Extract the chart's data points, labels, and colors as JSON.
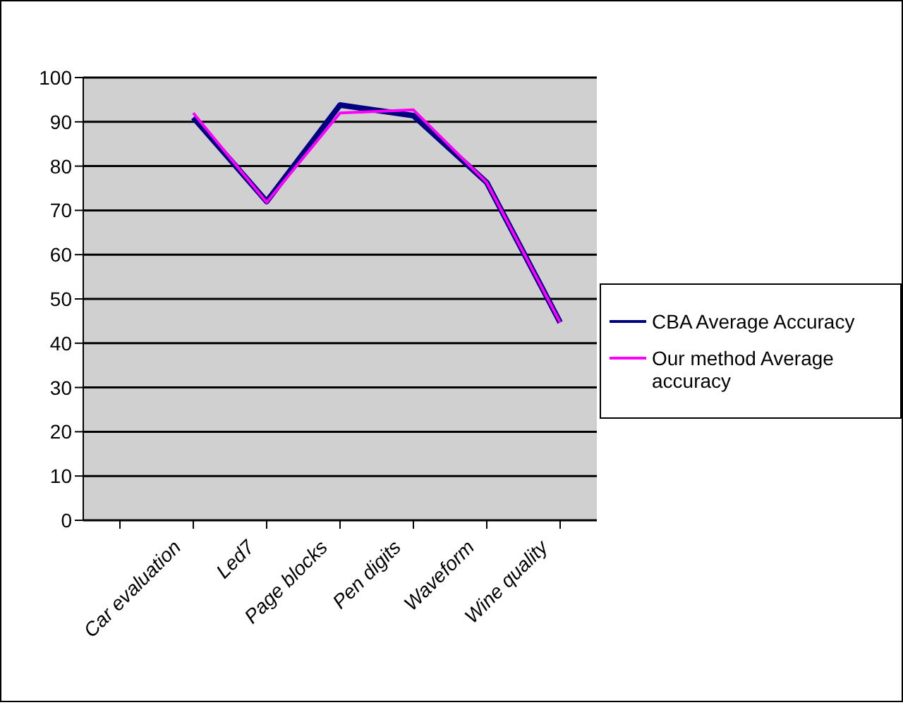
{
  "chart_data": {
    "type": "line",
    "categories": [
      null,
      "Car evaluation",
      "Led7",
      "Page blocks",
      "Pen digits",
      "Waveform",
      "Wine quality"
    ],
    "series": [
      {
        "name": "CBA Average Accuracy",
        "color": "#000080",
        "values": [
          null,
          91,
          72,
          93.8,
          91.4,
          76.3,
          44.7
        ]
      },
      {
        "name": "Our method Average accuracy",
        "color": "#ff00ff",
        "values": [
          null,
          92,
          71.8,
          92,
          92.7,
          76.3,
          44.7
        ]
      }
    ],
    "ylim": [
      0,
      100
    ],
    "yticks": [
      0,
      10,
      20,
      30,
      40,
      50,
      60,
      70,
      80,
      90,
      100
    ],
    "grid": "y",
    "legend": "right",
    "marker": "none",
    "line_style": "solid"
  }
}
